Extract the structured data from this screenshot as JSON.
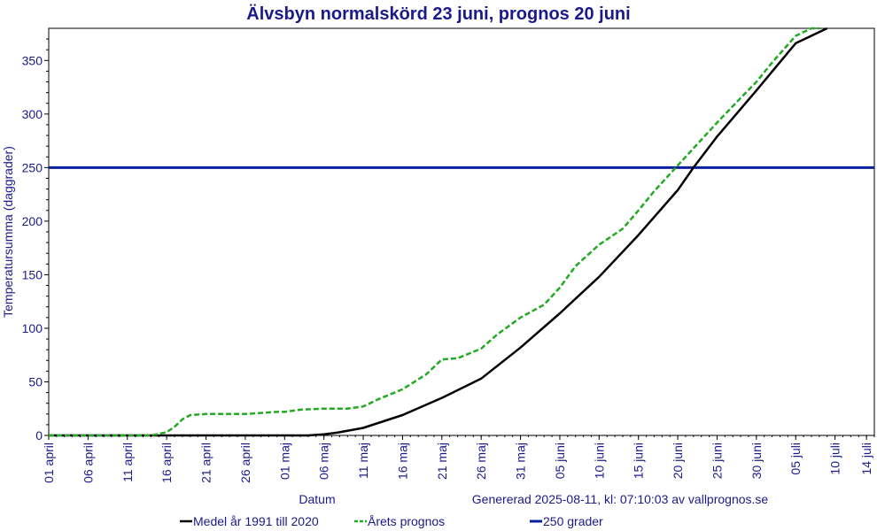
{
  "chart_data": {
    "type": "line",
    "title": "Älvsbyn normalskörd 23 juni, prognos 20 juni",
    "xlabel": "Datum",
    "ylabel": "Temperatursumma (daggrader)",
    "generated": "Genererad 2025-08-11, kl: 07:10:03 av vallprognos.se",
    "ylim": [
      0,
      380
    ],
    "xlim": [
      "01 april",
      "15 juli"
    ],
    "y_ticks": [
      0,
      50,
      100,
      150,
      200,
      250,
      300,
      350
    ],
    "x_ticks": [
      "01 april",
      "06 april",
      "11 april",
      "16 april",
      "21 april",
      "26 april",
      "01 maj",
      "06 maj",
      "11 maj",
      "16 maj",
      "21 maj",
      "26 maj",
      "31 maj",
      "05 juni",
      "10 juni",
      "15 juni",
      "20 juni",
      "25 juni",
      "30 juni",
      "05 juli",
      "10 juli",
      "14 juli"
    ],
    "grid": false,
    "series": [
      {
        "name": "Medel år 1991 till 2020",
        "color": "#000000",
        "style": "solid",
        "x": [
          "01 april",
          "16 april",
          "01 maj",
          "04 maj",
          "06 maj",
          "08 maj",
          "11 maj",
          "16 maj",
          "21 maj",
          "26 maj",
          "31 maj",
          "05 juni",
          "10 juni",
          "15 juni",
          "20 juni",
          "22 juni",
          "25 juni",
          "30 juni",
          "05 juli",
          "09 juli"
        ],
        "values": [
          0,
          0,
          0,
          0,
          1,
          3,
          7,
          19,
          35,
          53,
          82,
          114,
          148,
          187,
          229,
          250,
          279,
          322,
          366,
          400
        ]
      },
      {
        "name": "Årets prognos",
        "color": "#22aa22",
        "style": "dashed",
        "x": [
          "01 april",
          "14 april",
          "16 april",
          "17 april",
          "18 april",
          "19 april",
          "21 april",
          "26 april",
          "28 april",
          "30 april",
          "01 maj",
          "03 maj",
          "06 maj",
          "09 maj",
          "11 maj",
          "13 maj",
          "16 maj",
          "19 maj",
          "21 maj",
          "23 maj",
          "26 maj",
          "28 maj",
          "31 maj",
          "03 juni",
          "05 juni",
          "07 juni",
          "10 juni",
          "13 juni",
          "15 juni",
          "17 juni",
          "20 juni",
          "22 juni",
          "25 juni",
          "28 juni",
          "30 juni",
          "02 juli",
          "05 juli",
          "07 juli",
          "08 juli"
        ],
        "values": [
          0,
          0,
          3,
          8,
          15,
          19,
          20,
          20,
          21,
          22,
          22,
          24,
          25,
          25,
          27,
          34,
          43,
          57,
          71,
          72,
          81,
          94,
          110,
          122,
          138,
          158,
          178,
          193,
          210,
          228,
          252,
          268,
          292,
          315,
          330,
          348,
          373,
          388,
          398
        ]
      },
      {
        "name": "250 grader",
        "color": "#0a1ea0",
        "style": "solid",
        "x": [
          "01 april",
          "15 juli"
        ],
        "values": [
          250,
          250
        ]
      }
    ],
    "legend_position": "bottom"
  }
}
